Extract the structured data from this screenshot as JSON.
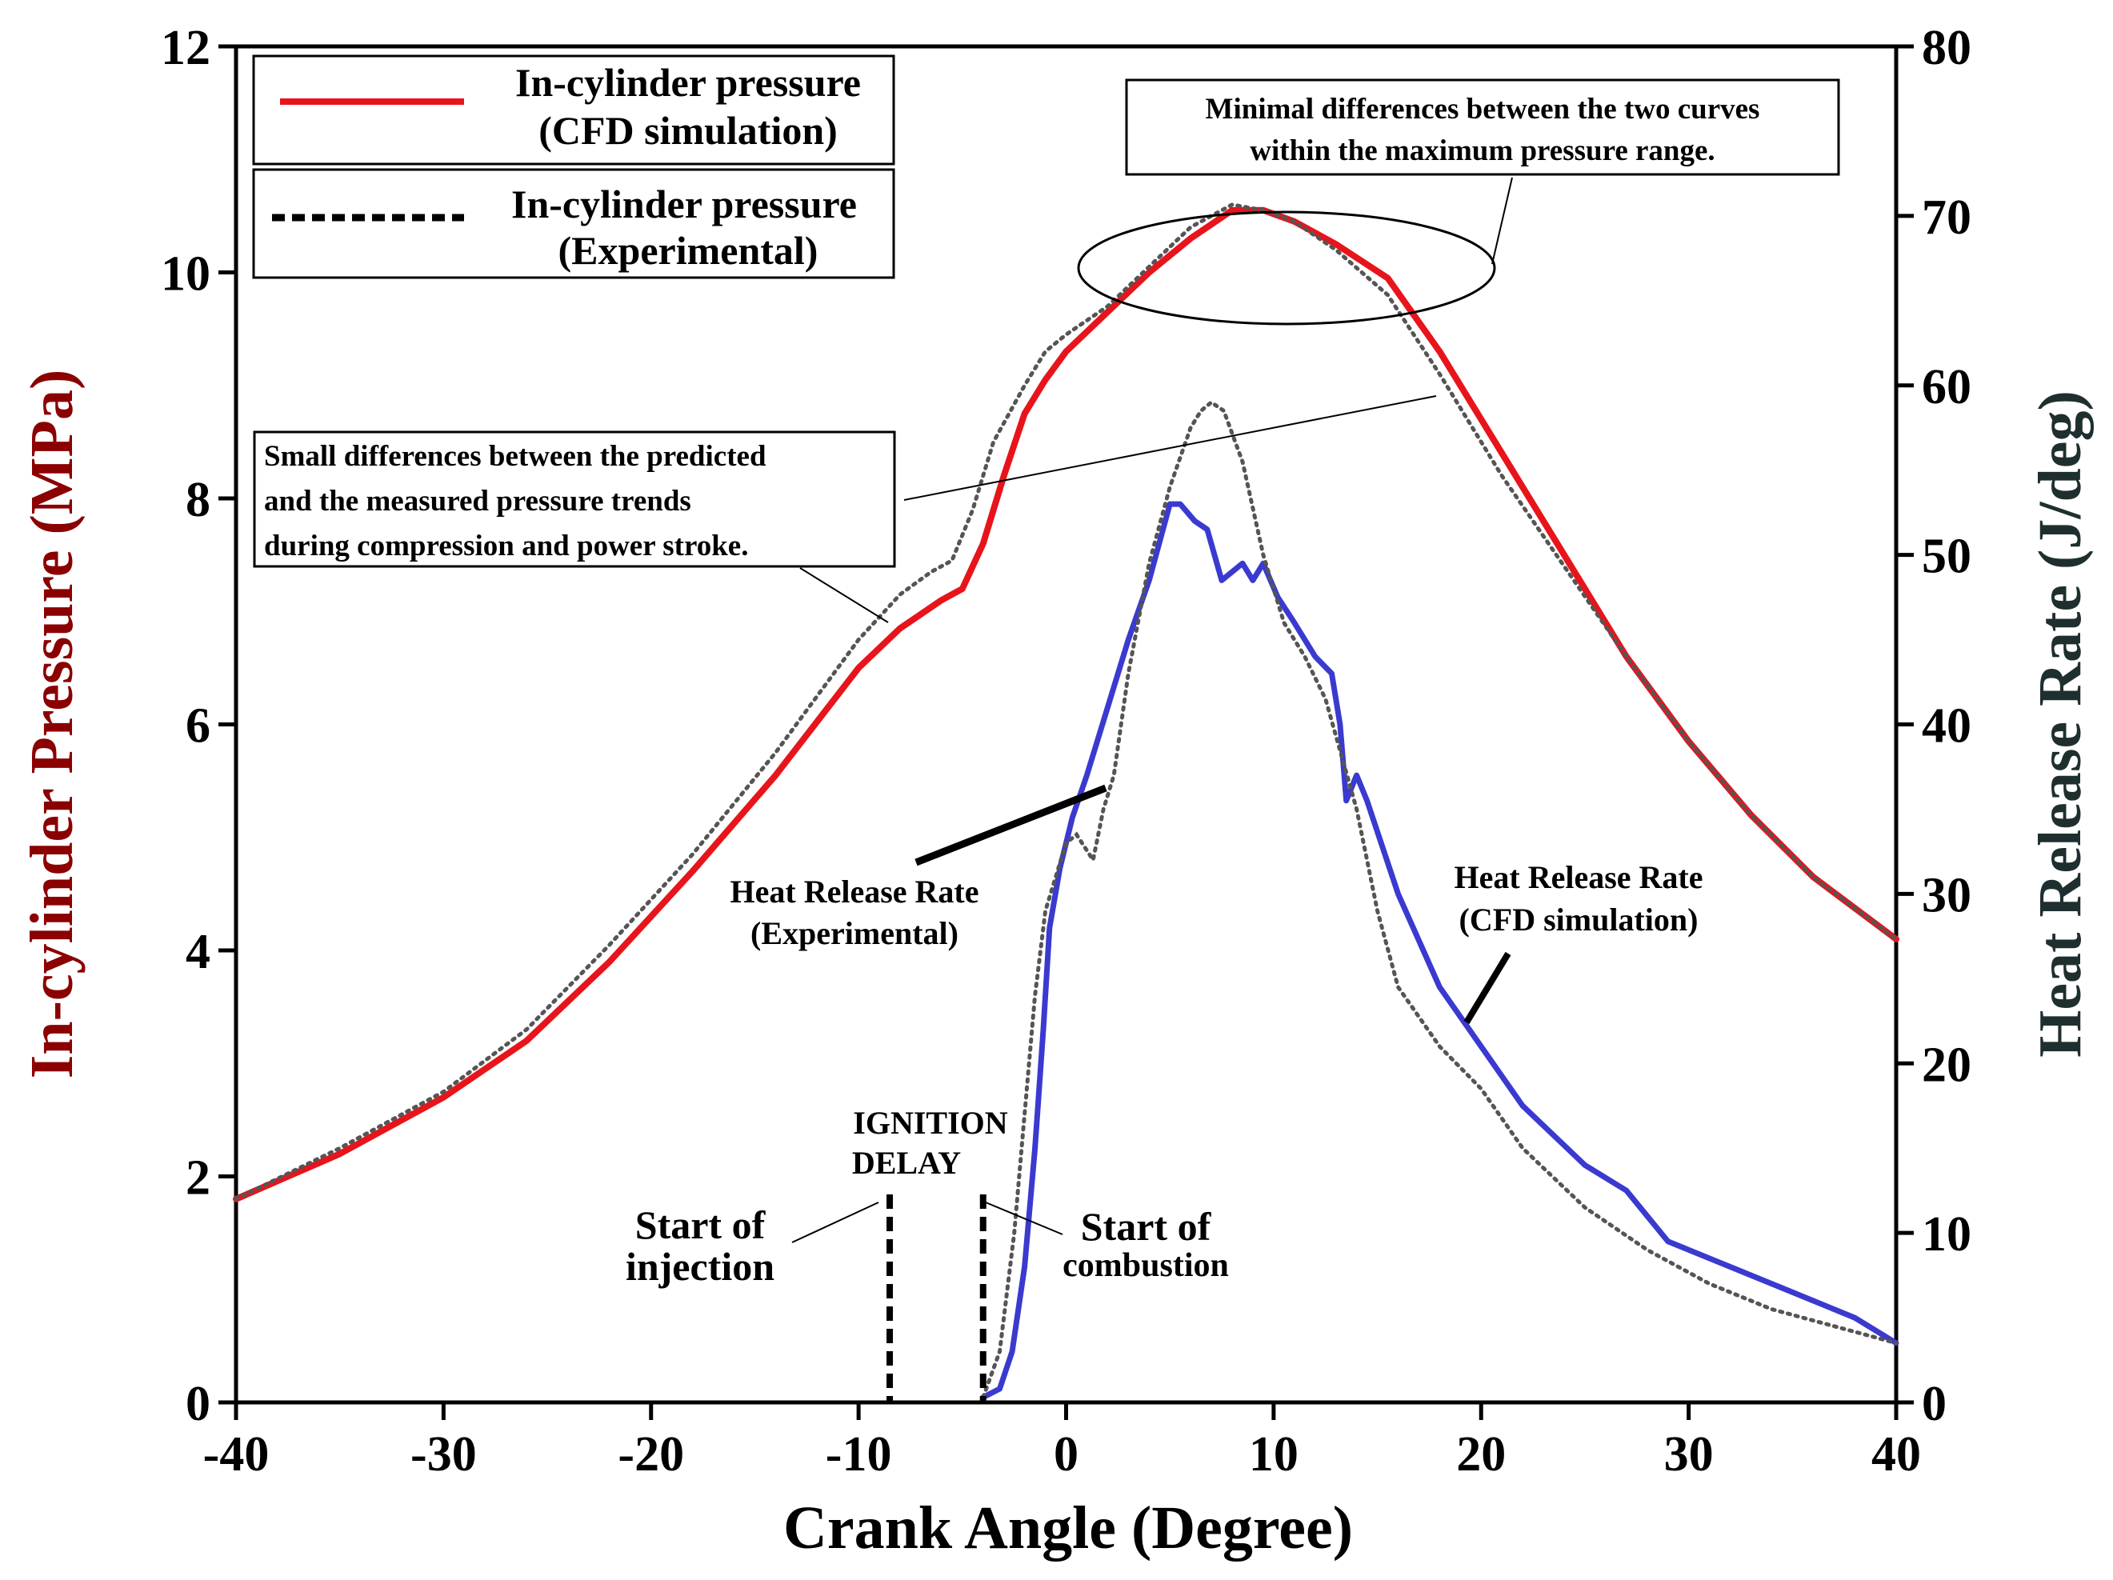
{
  "chart_data": {
    "type": "line",
    "xlabel": "Crank Angle (Degree)",
    "ylabel": "In-cylinder Pressure (MPa)",
    "y2label": "Heat Release Rate (J/deg)",
    "xlim": [
      -40,
      40
    ],
    "ylim": [
      0,
      12
    ],
    "y2lim": [
      0,
      80
    ],
    "xticks": [
      "-40",
      "-30",
      "-20",
      "-10",
      "0",
      "10",
      "20",
      "30",
      "40"
    ],
    "yticks": [
      "0",
      "2",
      "4",
      "6",
      "8",
      "10",
      "12"
    ],
    "y2ticks": [
      "0",
      "10",
      "20",
      "30",
      "40",
      "50",
      "60",
      "70",
      "80"
    ],
    "colors": {
      "cfd_pressure": "#e8141b",
      "exp_dotted": "#555555",
      "cfd_hrr": "#3a3ad0",
      "y1_title": "#8b0000",
      "y2_title": "#1f2f2f"
    },
    "legend": [
      {
        "line1": "In-cylinder pressure",
        "line2": "(CFD simulation)"
      },
      {
        "line1": "In-cylinder pressure",
        "line2": "(Experimental)"
      }
    ],
    "series": [
      {
        "name": "In-cylinder pressure (CFD simulation)",
        "axis": "left",
        "style": "solid",
        "x": [
          -40,
          -35,
          -30,
          -26,
          -22,
          -18,
          -14,
          -10,
          -8,
          -6,
          -5,
          -4,
          -3,
          -2,
          -1,
          0,
          2,
          4,
          6,
          8,
          9.5,
          11,
          13,
          15.5,
          18,
          21,
          24,
          27,
          30,
          33,
          36,
          40
        ],
        "y": [
          1.8,
          2.2,
          2.7,
          3.2,
          3.9,
          4.7,
          5.55,
          6.5,
          6.85,
          7.1,
          7.2,
          7.6,
          8.2,
          8.75,
          9.05,
          9.3,
          9.65,
          10.0,
          10.3,
          10.55,
          10.55,
          10.45,
          10.25,
          9.95,
          9.3,
          8.4,
          7.5,
          6.6,
          5.85,
          5.2,
          4.65,
          4.1
        ]
      },
      {
        "name": "In-cylinder pressure (Experimental)",
        "axis": "left",
        "style": "dotted",
        "x": [
          -40,
          -35,
          -30,
          -26,
          -22,
          -18,
          -14,
          -10,
          -8,
          -6.5,
          -5.5,
          -4.5,
          -3.5,
          -2,
          -1,
          0,
          2,
          4,
          6,
          8,
          9.5,
          11,
          13,
          15.5,
          18,
          21,
          24,
          27,
          30,
          33,
          36,
          40
        ],
        "y": [
          1.8,
          2.25,
          2.75,
          3.3,
          4.05,
          4.85,
          5.75,
          6.75,
          7.15,
          7.35,
          7.45,
          7.9,
          8.5,
          9.0,
          9.3,
          9.45,
          9.7,
          10.05,
          10.4,
          10.6,
          10.55,
          10.45,
          10.2,
          9.8,
          9.1,
          8.2,
          7.4,
          6.6,
          5.85,
          5.2,
          4.65,
          4.1
        ]
      },
      {
        "name": "Heat Release Rate (CFD simulation)",
        "axis": "right",
        "style": "solid",
        "x": [
          -4,
          -3.2,
          -2.6,
          -2.0,
          -1.5,
          -1.1,
          -0.8,
          -0.3,
          0.3,
          1.0,
          2.0,
          3.0,
          4.0,
          5.0,
          5.5,
          6.2,
          6.8,
          7.5,
          8.0,
          8.5,
          9.0,
          9.5,
          10.2,
          11.0,
          12.0,
          12.8,
          13.2,
          13.5,
          14.0,
          14.5,
          16.0,
          18.0,
          20.0,
          22.0,
          25.0,
          27.0,
          29.0,
          32.0,
          35.0,
          38.0,
          40.0
        ],
        "y": [
          0.3,
          0.8,
          3,
          8,
          15,
          22,
          28,
          31.5,
          34.5,
          37,
          41,
          45,
          48.5,
          53,
          53,
          52,
          51.5,
          48.5,
          49,
          49.5,
          48.5,
          49.5,
          47.5,
          46,
          44,
          43,
          40,
          35.5,
          37,
          35.5,
          30,
          24.5,
          21,
          17.5,
          14,
          12.5,
          9.5,
          8,
          6.5,
          5,
          3.5
        ]
      },
      {
        "name": "Heat Release Rate (Experimental)",
        "axis": "right",
        "style": "dotted",
        "x": [
          -4,
          -3.2,
          -2.5,
          -2.0,
          -1.5,
          -1.0,
          -0.5,
          0.0,
          0.5,
          1.3,
          1.8,
          2.3,
          3.0,
          4.0,
          5.0,
          6.0,
          6.5,
          7.0,
          7.6,
          8.5,
          9.5,
          10.5,
          11.5,
          12.5,
          14.0,
          15.0,
          16.0,
          18.0,
          20.0,
          22.0,
          25.0,
          28.0,
          31.0,
          34.0,
          37.0,
          40.0
        ],
        "y": [
          0.3,
          3,
          10,
          17,
          24,
          29,
          31,
          33,
          33.5,
          32,
          35,
          37,
          43,
          49.5,
          54,
          57.5,
          58.5,
          59,
          58.5,
          55.5,
          50,
          46,
          44,
          41.5,
          35,
          29,
          24.5,
          21,
          18.5,
          15,
          11.5,
          9,
          7,
          5.5,
          4.5,
          3.5
        ]
      }
    ],
    "notes": [
      {
        "line1": "Minimal differences between the two curves",
        "line2": "within the maximum pressure range."
      },
      {
        "line1": "Small differences between the predicted",
        "line2": "and the measured pressure trends",
        "line3": "during compression and power stroke."
      }
    ],
    "annotations": {
      "hrr_exp_line1": "Heat Release Rate",
      "hrr_exp_line2": "(Experimental)",
      "hrr_cfd_line1": "Heat Release Rate",
      "hrr_cfd_line2": "(CFD simulation)",
      "ignition_line1": "IGNITION",
      "ignition_line2": "DELAY",
      "start_inj_line1": "Start of",
      "start_inj_line2": "injection",
      "start_comb_line1": "Start of",
      "start_comb_line2": "combustion"
    },
    "vertical_markers": [
      {
        "name": "Start of injection",
        "x": -8.5
      },
      {
        "name": "Start of combustion",
        "x": -4
      }
    ]
  }
}
